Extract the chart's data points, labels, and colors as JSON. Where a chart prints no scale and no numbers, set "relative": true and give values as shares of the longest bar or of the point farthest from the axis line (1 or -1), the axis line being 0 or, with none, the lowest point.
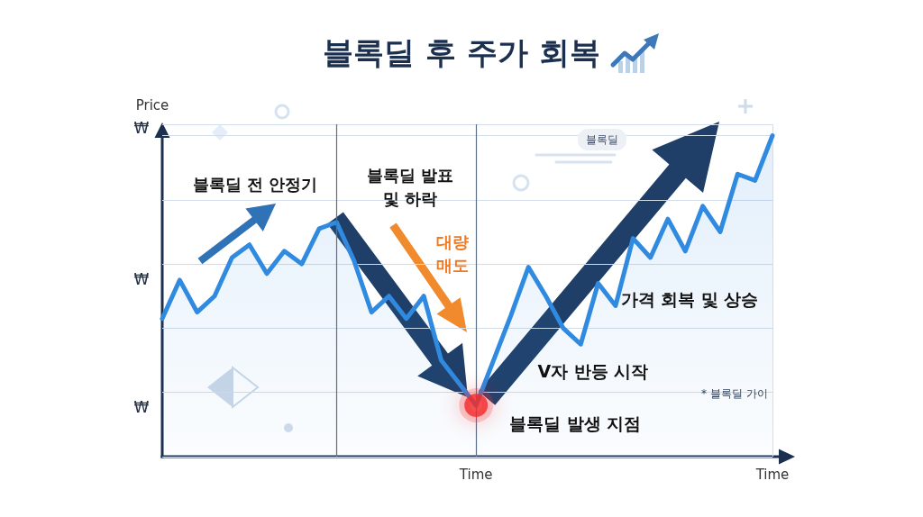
{
  "chart_data": {
    "type": "area",
    "title": "블록딜 후 주가 회복",
    "ylabel": "Price",
    "relative": true,
    "grid": true,
    "categories": [
      null,
      null,
      null,
      null,
      null,
      null,
      null,
      null,
      null,
      null,
      null,
      null,
      null,
      null,
      null,
      null,
      null,
      null,
      "Time",
      null,
      null,
      null,
      null,
      null,
      null,
      null,
      null,
      null,
      null,
      null,
      null,
      null,
      null,
      null,
      null,
      "Time"
    ],
    "series": [
      {
        "color": "#2f8ae0",
        "values": [
          0.43,
          0.55,
          0.45,
          0.5,
          0.62,
          0.66,
          0.57,
          0.64,
          0.6,
          0.71,
          0.73,
          0.61,
          0.45,
          0.5,
          0.43,
          0.5,
          0.3,
          0.23,
          0.16,
          0.3,
          0.44,
          0.59,
          0.5,
          0.4,
          0.35,
          0.54,
          0.47,
          0.68,
          0.62,
          0.74,
          0.64,
          0.78,
          0.7,
          0.88,
          0.86,
          1.0
        ]
      },
      {
        "type": "scatter",
        "color": "#f42a2a",
        "x": [
          "Time"
        ],
        "values": [
          0.16
        ]
      }
    ],
    "ref_lines": [
      {
        "axis": "x",
        "value": null
      },
      {
        "axis": "x",
        "value": null
      }
    ],
    "annotations": [
      "₩",
      "₩",
      "₩",
      "블록딜 전 안정기",
      "블록딜 발표\n및 하락",
      "대량\n매도",
      "V자 반등 시작",
      "가격 회복 및 상승",
      {
        "text": "블록딜 발생 지점",
        "x": "Time",
        "y": 0.16
      },
      "블록딜",
      "* 블록딜 가이"
    ]
  }
}
